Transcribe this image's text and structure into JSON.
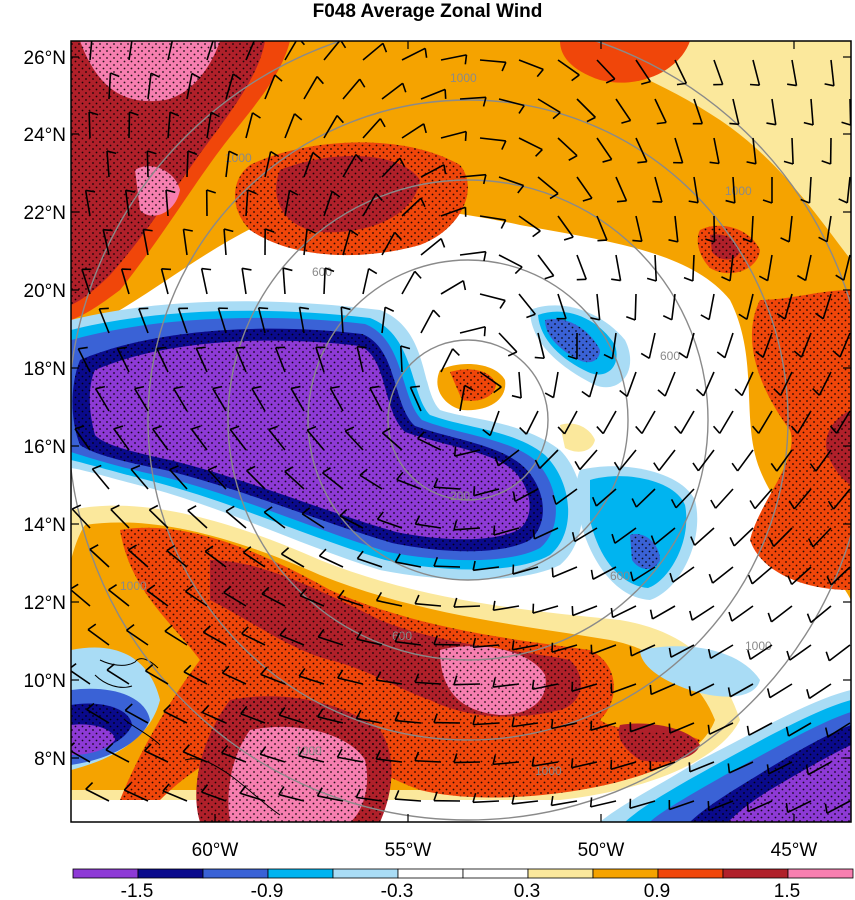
{
  "title": "F048 Average Zonal Wind",
  "y_axis": {
    "labels": [
      "26°N",
      "24°N",
      "22°N",
      "20°N",
      "18°N",
      "16°N",
      "14°N",
      "12°N",
      "10°N",
      "8°N"
    ],
    "values": [
      26,
      24,
      22,
      20,
      18,
      16,
      14,
      12,
      10,
      8
    ]
  },
  "x_axis": {
    "labels": [
      "60°W",
      "55°W",
      "50°W",
      "45°W"
    ],
    "values": [
      -60,
      -55,
      -50,
      -45
    ]
  },
  "range_rings": {
    "labels": [
      "200",
      "600",
      "1000"
    ]
  },
  "colorbar": {
    "labels": [
      "-1.5",
      "-0.9",
      "-0.3",
      "0.3",
      "0.9",
      "1.5"
    ],
    "label_values": [
      -1.5,
      -0.9,
      -0.3,
      0.3,
      0.9,
      1.5
    ],
    "colors": [
      "#8e3ad6",
      "#0a0a8c",
      "#3a62d6",
      "#00b4f0",
      "#a9dcf5",
      "#ffffff",
      "#ffffff",
      "#fbe89c",
      "#f5a300",
      "#f0460a",
      "#b0202a",
      "#f77fb0"
    ]
  }
}
